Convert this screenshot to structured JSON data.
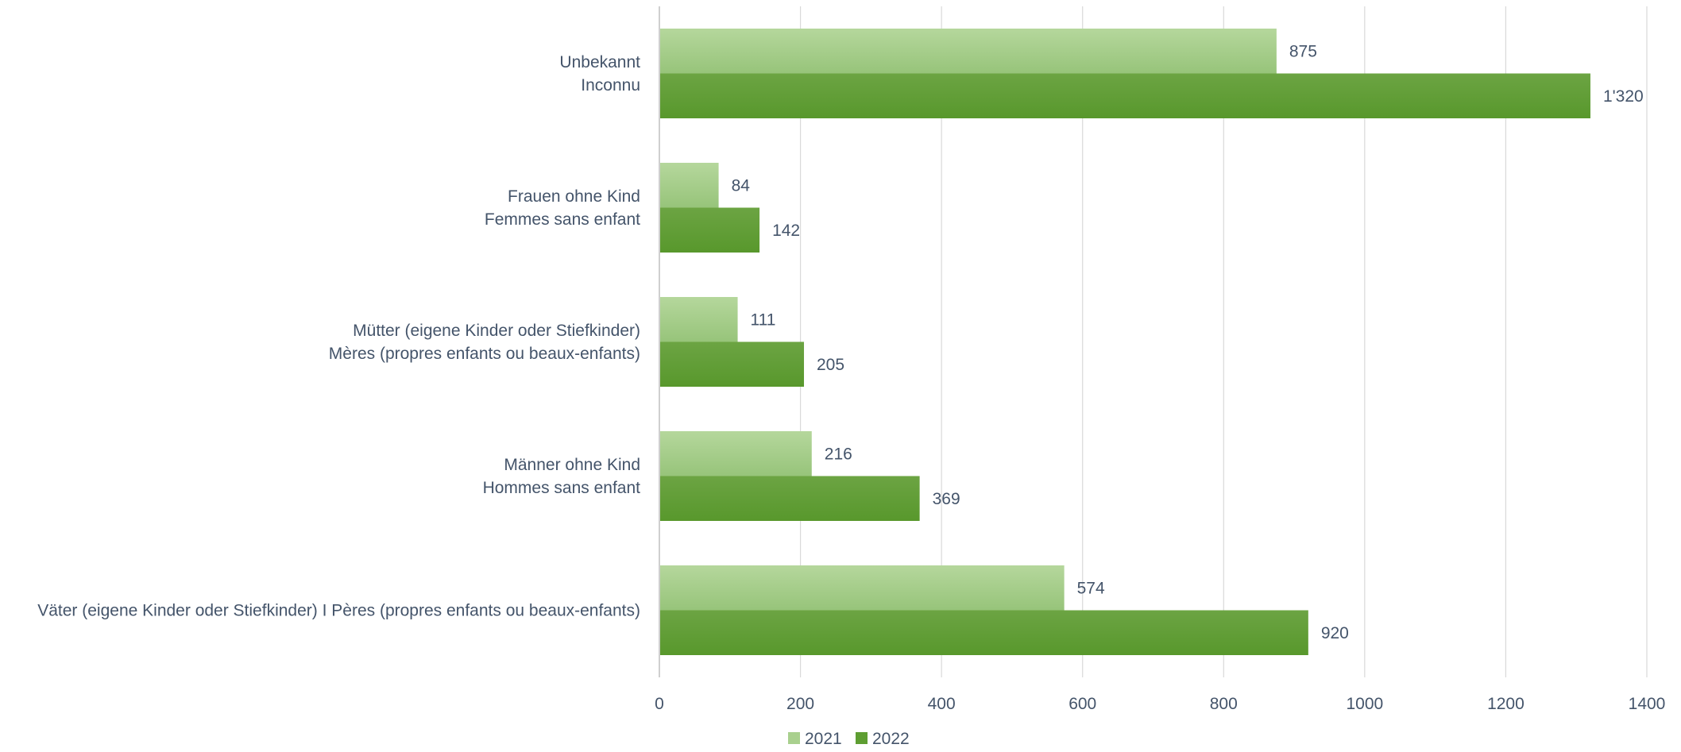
{
  "chart_data": {
    "type": "bar",
    "orientation": "horizontal",
    "categories": [
      [
        "Unbekannt",
        "Inconnu"
      ],
      [
        "Frauen ohne Kind",
        "Femmes sans enfant"
      ],
      [
        "Mütter (eigene Kinder oder Stiefkinder)",
        "Mères (propres enfants ou beaux-enfants)"
      ],
      [
        "Männer ohne Kind",
        "Hommes sans enfant"
      ],
      [
        "Väter (eigene Kinder oder Stiefkinder) I Pères (propres enfants ou beaux-enfants)"
      ]
    ],
    "series": [
      {
        "name": "2021",
        "values": [
          875,
          84,
          111,
          216,
          574
        ],
        "labels": [
          "875",
          "84",
          "111",
          "216",
          "574"
        ],
        "color": "#a9d08e"
      },
      {
        "name": "2022",
        "values": [
          1320,
          142,
          205,
          369,
          920
        ],
        "labels": [
          "1'320",
          "142",
          "205",
          "369",
          "920"
        ],
        "color": "#5e9e32"
      }
    ],
    "x_ticks": [
      "0",
      "200",
      "400",
      "600",
      "800",
      "1000",
      "1200",
      "1400"
    ],
    "xlim": [
      0,
      1400
    ],
    "grid": true,
    "legend": "bottom",
    "colors": {
      "gridline": "#d9d9d9",
      "text": "#44546a"
    }
  }
}
